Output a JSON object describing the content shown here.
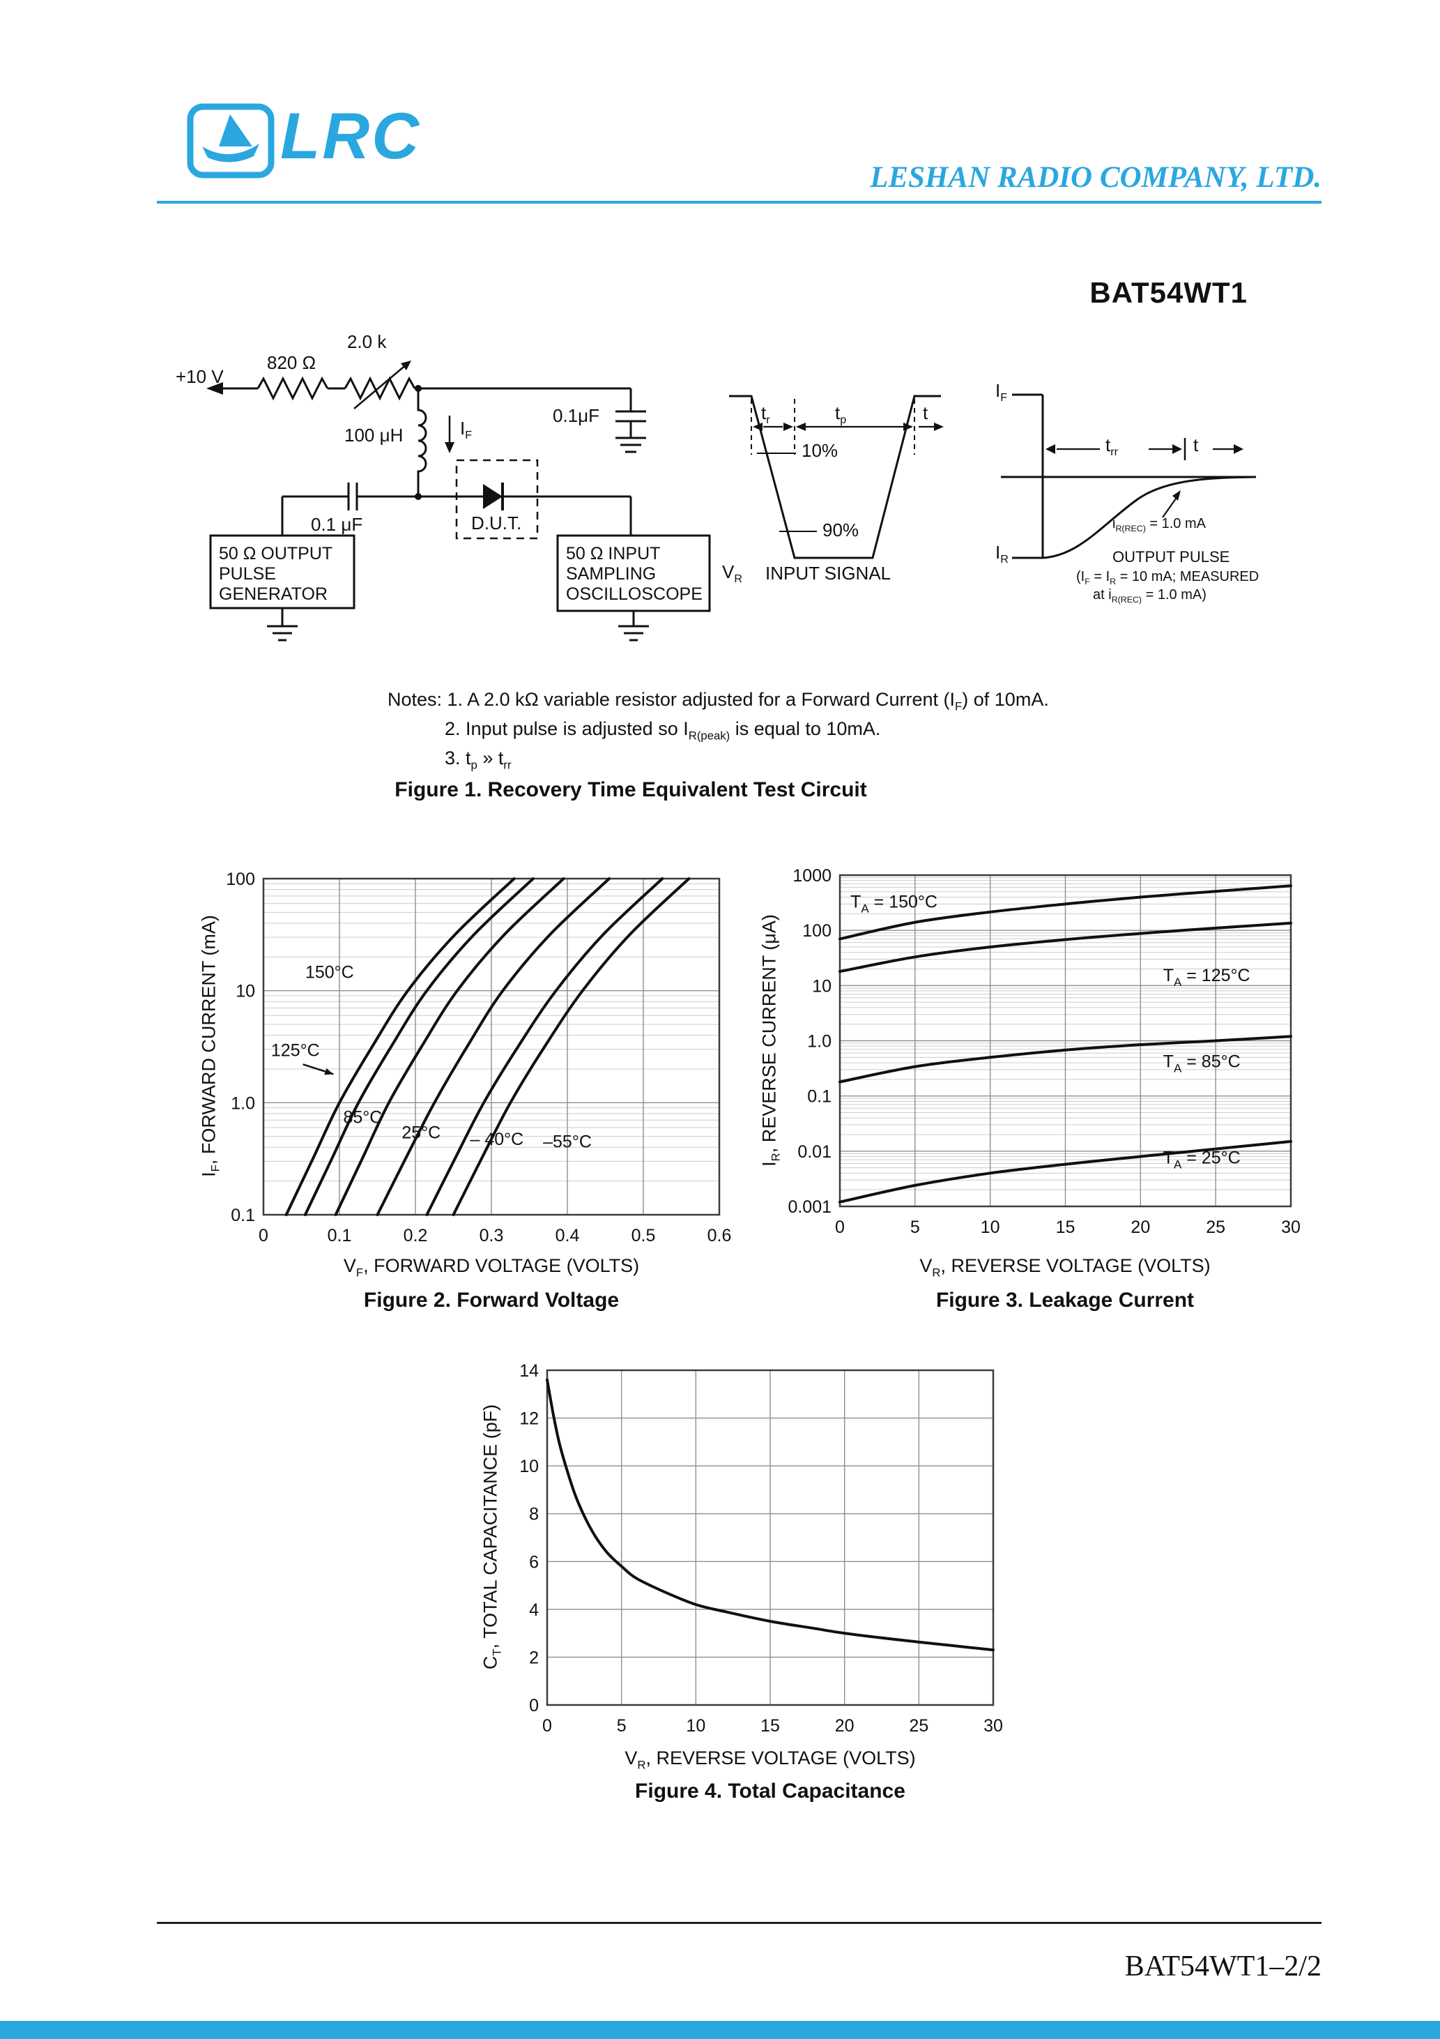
{
  "header": {
    "logo_text": "LRC",
    "company": "LESHAN RADIO COMPANY, LTD.",
    "accent_color": "#2AA7DF"
  },
  "title": "BAT54WT1",
  "footer": {
    "doc_ref": "BAT54WT1–2/2"
  },
  "figure1": {
    "caption": "Figure 1. Recovery Time Equivalent Test Circuit",
    "notes": [
      {
        "parts": [
          {
            "t": "Notes: 1. A 2.0 kΩ variable resistor adjusted for a Forward Current (I"
          },
          {
            "t": "F",
            "sub": true
          },
          {
            "t": ") of 10mA."
          }
        ]
      },
      {
        "parts": [
          {
            "t": "2. Input pulse is adjusted so I"
          },
          {
            "t": "R(peak)",
            "sub": true
          },
          {
            "t": " is equal to 10mA."
          }
        ]
      },
      {
        "parts": [
          {
            "t": "3. t"
          },
          {
            "t": "p",
            "sub": true
          },
          {
            "t": " » t"
          },
          {
            "t": "rr",
            "sub": true
          }
        ]
      }
    ],
    "labels": {
      "supply": "+10 V",
      "r1": "820 Ω",
      "r2": "2.0 k",
      "inductor": "100 μH",
      "if": {
        "parts": [
          {
            "t": "I"
          },
          {
            "t": "F",
            "sub": true
          }
        ]
      },
      "cap_top": "0.1μF",
      "cap_left": "0.1 μF",
      "dut": "D.U.T.",
      "gen_lines": [
        "50 Ω OUTPUT",
        "PULSE",
        "GENERATOR"
      ],
      "scope_lines": [
        "50 Ω INPUT",
        "SAMPLING",
        "OSCILLOSCOPE"
      ],
      "tr": {
        "parts": [
          {
            "t": "t"
          },
          {
            "t": "r",
            "sub": true
          }
        ]
      },
      "tp": {
        "parts": [
          {
            "t": "t"
          },
          {
            "t": "p",
            "sub": true
          }
        ]
      },
      "t1": "t",
      "pct10": "10%",
      "pct90": "90%",
      "vr": {
        "parts": [
          {
            "t": "V"
          },
          {
            "t": "R",
            "sub": true
          }
        ]
      },
      "input_signal": "INPUT SIGNAL",
      "if2": {
        "parts": [
          {
            "t": "I"
          },
          {
            "t": "F",
            "sub": true
          }
        ]
      },
      "ir": {
        "parts": [
          {
            "t": "I"
          },
          {
            "t": "R",
            "sub": true
          }
        ]
      },
      "trr": {
        "parts": [
          {
            "t": "t"
          },
          {
            "t": "rr",
            "sub": true
          }
        ]
      },
      "t2": "t",
      "irec": {
        "parts": [
          {
            "t": "i"
          },
          {
            "t": "R(REC)",
            "sub": true
          },
          {
            "t": " = 1.0 mA"
          }
        ]
      },
      "output_pulse": "OUTPUT PULSE",
      "output_note1": {
        "parts": [
          {
            "t": "(I"
          },
          {
            "t": "F",
            "sub": true
          },
          {
            "t": " = I"
          },
          {
            "t": "R",
            "sub": true
          },
          {
            "t": " = 10 mA; MEASURED"
          }
        ]
      },
      "output_note2": {
        "parts": [
          {
            "t": "at i"
          },
          {
            "t": "R(REC)",
            "sub": true
          },
          {
            "t": " = 1.0 mA)"
          }
        ]
      }
    }
  },
  "chart_data": [
    {
      "id": "figure2",
      "type": "line",
      "caption": "Figure 2. Forward Voltage",
      "xlabel_parts": [
        {
          "t": "V"
        },
        {
          "t": "F",
          "sub": true
        },
        {
          "t": ", FORWARD VOLTAGE (VOLTS)"
        }
      ],
      "ylabel_parts": [
        {
          "t": "I"
        },
        {
          "t": "F",
          "sub": true
        },
        {
          "t": ", FORWARD CURRENT (mA)"
        }
      ],
      "xscale": "linear",
      "yscale": "log",
      "xlim": [
        0,
        0.6
      ],
      "ylim": [
        0.1,
        100
      ],
      "xticks": [
        0,
        0.1,
        0.2,
        0.3,
        0.4,
        0.5,
        0.6
      ],
      "xtick_labels": [
        "0",
        "0.1",
        "0.2",
        "0.3",
        "0.4",
        "0.5",
        "0.6"
      ],
      "yticks": [
        0.1,
        1,
        10,
        100
      ],
      "ytick_labels": [
        "0.1",
        "1.0",
        "10",
        "100"
      ],
      "grid": true,
      "series": [
        {
          "name": "150°C",
          "points": [
            [
              0.03,
              0.1
            ],
            [
              0.065,
              0.316
            ],
            [
              0.1,
              1
            ],
            [
              0.143,
              3.16
            ],
            [
              0.19,
              10
            ],
            [
              0.252,
              31.6
            ],
            [
              0.33,
              100
            ]
          ]
        },
        {
          "name": "125°C",
          "points": [
            [
              0.055,
              0.1
            ],
            [
              0.09,
              0.316
            ],
            [
              0.125,
              1
            ],
            [
              0.168,
              3.16
            ],
            [
              0.215,
              10
            ],
            [
              0.277,
              31.6
            ],
            [
              0.355,
              100
            ]
          ]
        },
        {
          "name": "85°C",
          "points": [
            [
              0.095,
              0.1
            ],
            [
              0.13,
              0.316
            ],
            [
              0.165,
              1
            ],
            [
              0.208,
              3.16
            ],
            [
              0.255,
              10
            ],
            [
              0.317,
              31.6
            ],
            [
              0.395,
              100
            ]
          ]
        },
        {
          "name": "25°C",
          "points": [
            [
              0.15,
              0.1
            ],
            [
              0.187,
              0.316
            ],
            [
              0.225,
              1
            ],
            [
              0.268,
              3.16
            ],
            [
              0.315,
              10
            ],
            [
              0.377,
              31.6
            ],
            [
              0.455,
              100
            ]
          ]
        },
        {
          "name": "– 40°C",
          "points": [
            [
              0.215,
              0.1
            ],
            [
              0.252,
              0.316
            ],
            [
              0.29,
              1
            ],
            [
              0.335,
              3.16
            ],
            [
              0.385,
              10
            ],
            [
              0.447,
              31.6
            ],
            [
              0.525,
              100
            ]
          ]
        },
        {
          "name": "–55°C",
          "points": [
            [
              0.25,
              0.1
            ],
            [
              0.287,
              0.316
            ],
            [
              0.325,
              1
            ],
            [
              0.37,
              3.16
            ],
            [
              0.42,
              10
            ],
            [
              0.482,
              31.6
            ],
            [
              0.56,
              100
            ]
          ]
        }
      ],
      "annotations": [
        {
          "x": 0.055,
          "y": 13,
          "anchor": "start",
          "parts": [
            {
              "t": "150°C"
            }
          ]
        },
        {
          "x": 0.01,
          "y": 2.6,
          "anchor": "start",
          "parts": [
            {
              "t": "125°C"
            }
          ],
          "arrow": [
            0.052,
            2.2,
            0.092,
            1.8
          ]
        },
        {
          "x": 0.105,
          "y": 0.66,
          "anchor": "start",
          "parts": [
            {
              "t": "85°C"
            }
          ]
        },
        {
          "x": 0.182,
          "y": 0.48,
          "anchor": "start",
          "parts": [
            {
              "t": "25°C"
            }
          ]
        },
        {
          "x": 0.272,
          "y": 0.42,
          "anchor": "start",
          "parts": [
            {
              "t": "– 40°C"
            }
          ]
        },
        {
          "x": 0.368,
          "y": 0.4,
          "anchor": "start",
          "parts": [
            {
              "t": "–55°C"
            }
          ]
        }
      ]
    },
    {
      "id": "figure3",
      "type": "line",
      "caption": "Figure 3. Leakage Current",
      "xlabel_parts": [
        {
          "t": "V"
        },
        {
          "t": "R",
          "sub": true
        },
        {
          "t": ", REVERSE VOLTAGE (VOLTS)"
        }
      ],
      "ylabel_parts": [
        {
          "t": "I"
        },
        {
          "t": "R",
          "sub": true
        },
        {
          "t": ", REVERSE CURRENT (μA)"
        }
      ],
      "xscale": "linear",
      "yscale": "log",
      "xlim": [
        0,
        30
      ],
      "ylim": [
        0.001,
        1000
      ],
      "xticks": [
        0,
        5,
        10,
        15,
        20,
        25,
        30
      ],
      "xtick_labels": [
        "0",
        "5",
        "10",
        "15",
        "20",
        "25",
        "30"
      ],
      "yticks": [
        0.001,
        0.01,
        0.1,
        1,
        10,
        100,
        1000
      ],
      "ytick_labels": [
        "0.001",
        "0.01",
        "0.1",
        "1.0",
        "10",
        "100",
        "1000"
      ],
      "grid": true,
      "series": [
        {
          "name": "TA = 150°C",
          "points": [
            [
              0,
              70
            ],
            [
              5,
              140
            ],
            [
              10,
              215
            ],
            [
              15,
              300
            ],
            [
              20,
              400
            ],
            [
              25,
              510
            ],
            [
              30,
              640
            ]
          ]
        },
        {
          "name": "TA = 125°C",
          "points": [
            [
              0,
              18
            ],
            [
              5,
              33
            ],
            [
              10,
              50
            ],
            [
              15,
              68
            ],
            [
              20,
              88
            ],
            [
              25,
              110
            ],
            [
              30,
              135
            ]
          ]
        },
        {
          "name": "TA = 85°C",
          "points": [
            [
              0,
              0.18
            ],
            [
              5,
              0.34
            ],
            [
              10,
              0.5
            ],
            [
              15,
              0.68
            ],
            [
              20,
              0.85
            ],
            [
              25,
              1.0
            ],
            [
              30,
              1.2
            ]
          ]
        },
        {
          "name": "TA = 25°C",
          "points": [
            [
              0,
              0.0012
            ],
            [
              5,
              0.0024
            ],
            [
              10,
              0.004
            ],
            [
              15,
              0.0058
            ],
            [
              20,
              0.008
            ],
            [
              25,
              0.011
            ],
            [
              30,
              0.015
            ]
          ]
        }
      ],
      "annotations": [
        {
          "x": 0.7,
          "y": 260,
          "anchor": "start",
          "parts": [
            {
              "t": "T"
            },
            {
              "t": "A",
              "sub": true
            },
            {
              "t": " = 150°C"
            }
          ]
        },
        {
          "x": 21.5,
          "y": 12,
          "anchor": "start",
          "parts": [
            {
              "t": "T"
            },
            {
              "t": "A",
              "sub": true
            },
            {
              "t": " = 125°C"
            }
          ]
        },
        {
          "x": 21.5,
          "y": 0.33,
          "anchor": "start",
          "parts": [
            {
              "t": "T"
            },
            {
              "t": "A",
              "sub": true
            },
            {
              "t": " = 85°C"
            }
          ]
        },
        {
          "x": 21.5,
          "y": 0.006,
          "anchor": "start",
          "parts": [
            {
              "t": "T"
            },
            {
              "t": "A",
              "sub": true
            },
            {
              "t": " = 25°C"
            }
          ]
        }
      ]
    },
    {
      "id": "figure4",
      "type": "line",
      "caption": "Figure 4. Total Capacitance",
      "xlabel_parts": [
        {
          "t": "V"
        },
        {
          "t": "R",
          "sub": true
        },
        {
          "t": ", REVERSE VOLTAGE (VOLTS)"
        }
      ],
      "ylabel_parts": [
        {
          "t": "C"
        },
        {
          "t": "T",
          "sub": true
        },
        {
          "t": ", TOTAL CAPACITANCE (pF)"
        }
      ],
      "xscale": "linear",
      "yscale": "linear",
      "xlim": [
        0,
        30
      ],
      "ylim": [
        0,
        14
      ],
      "xticks": [
        0,
        5,
        10,
        15,
        20,
        25,
        30
      ],
      "xtick_labels": [
        "0",
        "5",
        "10",
        "15",
        "20",
        "25",
        "30"
      ],
      "yticks": [
        0,
        2,
        4,
        6,
        8,
        10,
        12,
        14
      ],
      "ytick_labels": [
        "0",
        "2",
        "4",
        "6",
        "8",
        "10",
        "12",
        "14"
      ],
      "grid": true,
      "series": [
        {
          "name": "CT",
          "points": [
            [
              0,
              13.6
            ],
            [
              0.4,
              12.2
            ],
            [
              0.8,
              11.0
            ],
            [
              1.3,
              9.9
            ],
            [
              2,
              8.6
            ],
            [
              3,
              7.3
            ],
            [
              4,
              6.4
            ],
            [
              5,
              5.8
            ],
            [
              6,
              5.3
            ],
            [
              8,
              4.7
            ],
            [
              10,
              4.2
            ],
            [
              12,
              3.9
            ],
            [
              15,
              3.5
            ],
            [
              18,
              3.2
            ],
            [
              20,
              3.0
            ],
            [
              24,
              2.7
            ],
            [
              27,
              2.5
            ],
            [
              30,
              2.3
            ]
          ]
        }
      ],
      "annotations": []
    }
  ]
}
